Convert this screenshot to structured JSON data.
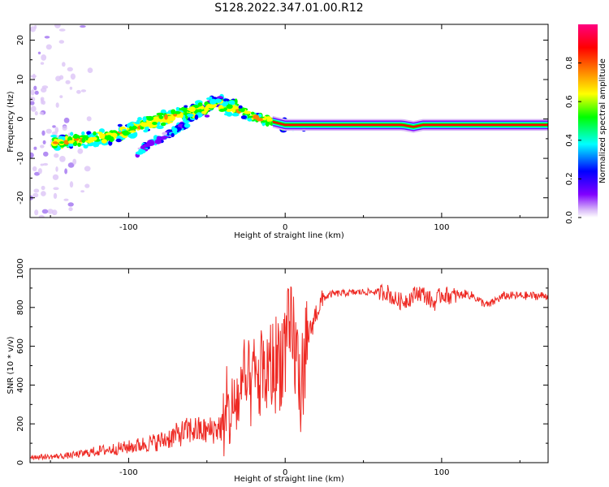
{
  "title": "S128.2022.347.01.00.R12",
  "chart_data": [
    {
      "type": "heatmap",
      "name": "spectrogram",
      "xlabel": "Height of straight line (km)",
      "ylabel": "Frequency (Hz)",
      "xlim": [
        -163,
        168
      ],
      "ylim": [
        -25,
        24
      ],
      "xticks": [
        -100,
        0,
        100
      ],
      "yticks": [
        -20,
        -10,
        0,
        10,
        20
      ],
      "colorbar": {
        "label": "Normalized spectral amplitude",
        "range": [
          0,
          1
        ],
        "ticks": [
          "0.0",
          "0.2",
          "0.4",
          "0.6",
          "0.8"
        ],
        "colormap": [
          "#ffffff",
          "#d8b8f8",
          "#8000ff",
          "#0000ff",
          "#00ffff",
          "#00ff00",
          "#ffff00",
          "#ff8000",
          "#ff0000",
          "#ff0080"
        ]
      },
      "ridge": {
        "x": [
          -148,
          -120,
          -100,
          -80,
          -60,
          -45,
          -35,
          -20,
          -10,
          0,
          20,
          60,
          75,
          82,
          88,
          100,
          168
        ],
        "y": [
          -6,
          -5,
          -3,
          0,
          2,
          3.5,
          3,
          0.5,
          -0.5,
          -1.5,
          -1.5,
          -1.5,
          -1.5,
          -2,
          -1.5,
          -1.5,
          -1.5
        ]
      },
      "secondary_ridge": {
        "x": [
          -95,
          -85,
          -70,
          -60,
          -50,
          -40
        ],
        "y": [
          -9,
          -6,
          -3,
          0,
          3,
          5
        ]
      }
    },
    {
      "type": "line",
      "name": "snr",
      "xlabel": "Height of straight line (km)",
      "ylabel": "SNR (10 * v/v)",
      "xlim": [
        -163,
        168
      ],
      "ylim": [
        0,
        1000
      ],
      "xticks": [
        -100,
        0,
        100
      ],
      "yticks": [
        0,
        200,
        400,
        600,
        800,
        1000
      ],
      "line_color": "#ee2a24",
      "series": [
        {
          "x": [
            -163,
            -150,
            -140,
            -130,
            -120,
            -110,
            -100,
            -90,
            -80,
            -70,
            -60,
            -50,
            -40,
            -35,
            -30,
            -25,
            -20,
            -15,
            -10,
            -5,
            0,
            5,
            8,
            10,
            12,
            15,
            20,
            25,
            30,
            40,
            50,
            60,
            65,
            70,
            75,
            80,
            85,
            90,
            95,
            100,
            105,
            110,
            115,
            120,
            125,
            130,
            135,
            140,
            150,
            160,
            168
          ],
          "y": [
            30,
            30,
            35,
            45,
            60,
            70,
            80,
            95,
            110,
            140,
            170,
            160,
            190,
            250,
            330,
            380,
            420,
            430,
            480,
            520,
            590,
            650,
            500,
            350,
            550,
            650,
            780,
            850,
            870,
            875,
            880,
            880,
            880,
            840,
            830,
            850,
            880,
            860,
            820,
            870,
            860,
            860,
            870,
            860,
            830,
            810,
            840,
            860,
            860,
            860,
            860
          ]
        }
      ]
    }
  ]
}
